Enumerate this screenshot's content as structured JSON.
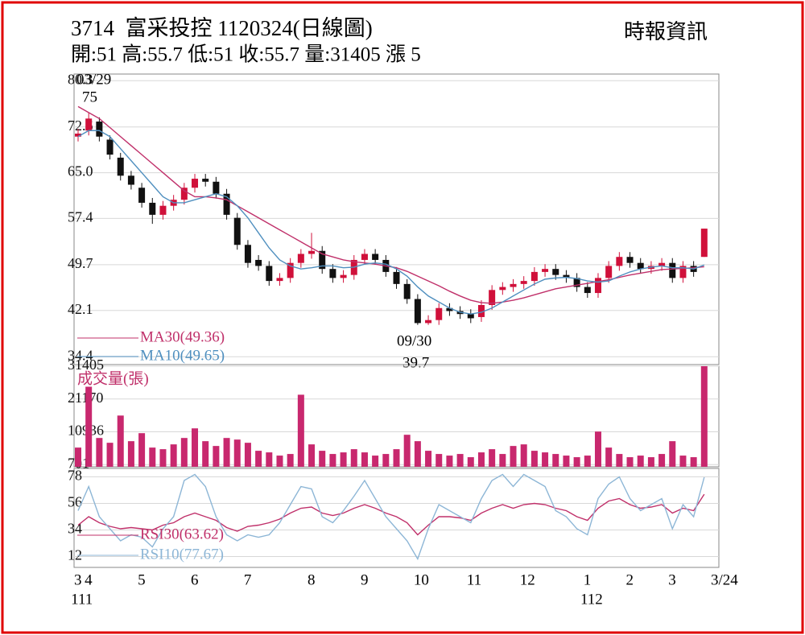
{
  "header": {
    "title": "3714  富采投控 1120324(日線圖)",
    "source": "時報資訊",
    "summary": "開:51 高:55.7 低:51 收:55.7 量:31405 漲 5"
  },
  "x_axis": {
    "categories": [
      "3",
      "4",
      null,
      null,
      null,
      null,
      "5",
      null,
      null,
      null,
      null,
      "6",
      null,
      null,
      null,
      null,
      "7",
      null,
      null,
      null,
      null,
      null,
      "8",
      null,
      null,
      null,
      null,
      "9",
      null,
      null,
      null,
      null,
      "10",
      null,
      null,
      null,
      null,
      "11",
      null,
      null,
      null,
      null,
      "12",
      null,
      null,
      null,
      null,
      null,
      "1",
      null,
      null,
      null,
      "2",
      null,
      null,
      null,
      "3",
      null,
      null,
      null,
      "3/24"
    ],
    "years": [
      null,
      "111",
      null,
      null,
      null,
      null,
      null,
      null,
      null,
      null,
      null,
      null,
      null,
      null,
      null,
      null,
      null,
      null,
      null,
      null,
      null,
      null,
      null,
      null,
      null,
      null,
      null,
      null,
      null,
      null,
      null,
      null,
      null,
      null,
      null,
      null,
      null,
      null,
      null,
      null,
      null,
      null,
      null,
      null,
      null,
      null,
      null,
      null,
      null,
      "112",
      null,
      null,
      null,
      null,
      null,
      null,
      null,
      null,
      null,
      null
    ]
  },
  "chart_data": [
    {
      "type": "candlestick",
      "up_color": "#d0103a",
      "down_color": "#111111",
      "open": [
        71,
        72,
        73.5,
        70.5,
        67.5,
        64.5,
        62.5,
        60,
        58,
        59.5,
        60.5,
        62.5,
        64,
        63.5,
        61.5,
        57.5,
        53,
        50.5,
        49.5,
        47,
        47.5,
        50,
        51.5,
        52,
        49,
        47.5,
        48,
        50.5,
        51.5,
        50.5,
        48.5,
        46.5,
        44,
        40,
        40.5,
        42.5,
        42,
        41.5,
        41,
        43,
        45.5,
        46,
        46.5,
        47,
        48.5,
        49,
        48,
        47.5,
        46,
        45,
        47.5,
        49.5,
        51,
        50,
        49,
        49.5,
        50,
        47.5,
        49.5,
        51
      ],
      "high": [
        72.3,
        75,
        74.2,
        71.2,
        68.3,
        65.3,
        63.3,
        60.8,
        60.3,
        61.3,
        63.3,
        64.8,
        64.8,
        64.3,
        62.3,
        58.3,
        53.8,
        51.3,
        50.3,
        48.3,
        50.8,
        52.3,
        55,
        52.8,
        49.8,
        48.8,
        51.3,
        52.3,
        52.3,
        51.3,
        49.3,
        47.3,
        44.8,
        41.3,
        43.3,
        43.3,
        42.8,
        42.3,
        43.8,
        46.3,
        46.8,
        47.3,
        47.8,
        49.3,
        49.8,
        49.8,
        48.8,
        48.3,
        46.8,
        48.3,
        50.3,
        51.8,
        51.8,
        50.8,
        50.3,
        50.8,
        50.8,
        50.3,
        50.3,
        55.7
      ],
      "low": [
        70.2,
        71.2,
        70.2,
        67.2,
        63.7,
        62.2,
        59.2,
        56.5,
        57.2,
        58.7,
        59.7,
        61.7,
        62.7,
        60.7,
        57.2,
        52.2,
        49.2,
        48.7,
        46.2,
        46.2,
        46.7,
        49.2,
        50.7,
        48.2,
        46.7,
        46.7,
        47.2,
        49.7,
        49.7,
        47.7,
        45.7,
        43.2,
        39.7,
        39.7,
        39.7,
        41.2,
        40.7,
        40,
        40.2,
        42.2,
        44.7,
        45.2,
        45.7,
        46.2,
        47.7,
        47.2,
        46.7,
        45.2,
        44.2,
        44.2,
        46.7,
        48.7,
        49.2,
        48.2,
        48.2,
        48.7,
        46.7,
        46.7,
        47.7,
        51
      ],
      "close": [
        71.5,
        74,
        71,
        68,
        64.5,
        63,
        60,
        58,
        59.5,
        60.5,
        62.5,
        64,
        63.5,
        61.5,
        58,
        53,
        50,
        49.5,
        47,
        47.5,
        50,
        51.5,
        52,
        49,
        47.5,
        48,
        50.5,
        51.5,
        50.5,
        48.5,
        46.5,
        44,
        40,
        40.5,
        42.5,
        42,
        41.5,
        40.8,
        43,
        45.5,
        46,
        46.5,
        47,
        48.5,
        49,
        48,
        47.5,
        46,
        45,
        47.5,
        49.5,
        51,
        50,
        49,
        49.5,
        50,
        47.5,
        49.5,
        48.5,
        55.7
      ],
      "series": [
        {
          "name": "MA30(49.36)",
          "color": "#c0306a",
          "values": [
            76,
            75,
            74,
            72.5,
            71,
            69.5,
            68,
            66.5,
            65,
            63.5,
            62,
            61,
            61,
            60.8,
            60.5,
            59.5,
            58.5,
            57.5,
            56.5,
            55.5,
            54.5,
            53.5,
            52.5,
            51.5,
            51,
            50.5,
            50.2,
            50,
            49.8,
            49.5,
            49.2,
            48.6,
            47.8,
            47,
            46.2,
            45.3,
            44.5,
            43.8,
            43.4,
            43.3,
            43.5,
            43.8,
            44.2,
            44.7,
            45.2,
            45.7,
            46,
            46.3,
            46.6,
            46.9,
            47.2,
            47.6,
            48,
            48.3,
            48.6,
            48.9,
            49,
            49.1,
            49.2,
            49.36
          ]
        },
        {
          "name": "MA10(49.65)",
          "color": "#4f8fbf",
          "values": [
            71,
            72,
            72,
            71,
            69,
            67,
            65,
            63,
            61,
            60,
            60,
            60.5,
            61,
            61.5,
            61,
            59.5,
            57.5,
            55,
            52.5,
            50.5,
            49.5,
            49,
            49.2,
            49.5,
            49.5,
            49.2,
            49.3,
            49.8,
            50,
            49.8,
            49,
            47.8,
            46,
            44.5,
            43.5,
            42.5,
            41.8,
            41.5,
            41.8,
            42.5,
            43.5,
            44.5,
            45.5,
            46.5,
            47.3,
            47.5,
            47.6,
            47.4,
            47,
            46.8,
            47,
            47.8,
            48.5,
            49,
            49.3,
            49.5,
            49.2,
            49.2,
            49,
            49.65
          ]
        }
      ],
      "annotations": [
        {
          "date": "03/29",
          "value": 75
        },
        {
          "date": "09/30",
          "value": 39.7
        }
      ],
      "ylim": [
        33.1,
        81.4
      ],
      "yticks": [
        80.3,
        72.6,
        {
          "value": 65,
          "label": "65.0"
        },
        57.4,
        49.7,
        42.1,
        34.4
      ],
      "grid": true
    },
    {
      "type": "bar",
      "title": "成交量(張)",
      "color": "#c8286e",
      "values": [
        6000,
        25000,
        9000,
        7500,
        16000,
        8000,
        10500,
        6000,
        5500,
        7000,
        9000,
        12000,
        8000,
        6500,
        9000,
        8500,
        7500,
        5000,
        4500,
        3500,
        4000,
        22500,
        7000,
        5000,
        4000,
        4500,
        5500,
        4500,
        3500,
        4000,
        5500,
        10000,
        8000,
        5000,
        4000,
        3500,
        4000,
        3000,
        4500,
        5500,
        4000,
        6500,
        7000,
        5000,
        4500,
        4000,
        3500,
        3000,
        3500,
        11000,
        6000,
        4000,
        3000,
        3500,
        3000,
        4000,
        8000,
        3500,
        3000,
        31405
      ],
      "ylim": [
        0,
        31405
      ],
      "yticks": [
        31405,
        21170,
        10936,
        701
      ],
      "grid": true
    },
    {
      "type": "line",
      "series": [
        {
          "name": "RSI30(63.62)",
          "color": "#c0306a",
          "values": [
            38,
            45,
            40,
            37,
            35,
            36,
            35,
            34,
            38,
            40,
            45,
            48,
            45,
            42,
            36,
            33,
            37,
            38,
            40,
            43,
            48,
            52,
            53,
            48,
            46,
            48,
            52,
            55,
            52,
            48,
            45,
            40,
            30,
            38,
            45,
            45,
            44,
            42,
            48,
            52,
            55,
            52,
            55,
            56,
            55,
            52,
            50,
            45,
            42,
            52,
            58,
            60,
            55,
            52,
            53,
            55,
            48,
            52,
            50,
            63.62
          ]
        },
        {
          "name": "RSI10(77.67)",
          "color": "#8db6d6",
          "values": [
            50,
            70,
            45,
            35,
            25,
            30,
            28,
            20,
            35,
            45,
            75,
            80,
            70,
            45,
            30,
            25,
            30,
            28,
            30,
            40,
            55,
            70,
            68,
            45,
            40,
            50,
            62,
            75,
            60,
            45,
            35,
            25,
            10,
            35,
            55,
            50,
            45,
            40,
            60,
            75,
            80,
            70,
            80,
            75,
            70,
            50,
            45,
            35,
            30,
            60,
            72,
            78,
            60,
            50,
            55,
            60,
            35,
            55,
            45,
            77.67
          ]
        }
      ],
      "ylim": [
        3,
        85
      ],
      "yticks": [
        78,
        56,
        34,
        12
      ],
      "grid": true
    }
  ]
}
